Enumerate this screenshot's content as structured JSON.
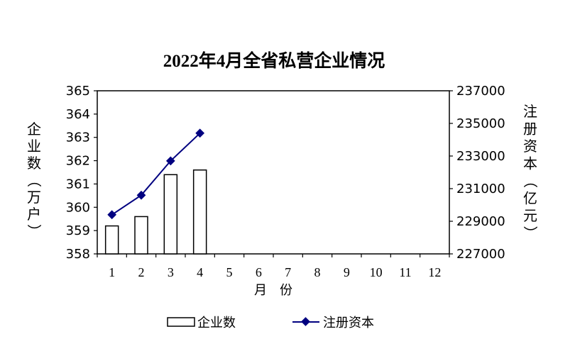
{
  "chart_data": {
    "type": "bar+line",
    "title": "2022年4月全省私营企业情况",
    "xlabel": "月　份",
    "ylabel_left": "企业数（万户）",
    "ylabel_right": "注册资本（亿元）",
    "categories": [
      "1",
      "2",
      "3",
      "4",
      "5",
      "6",
      "7",
      "8",
      "9",
      "10",
      "11",
      "12"
    ],
    "left_axis": {
      "ylim": [
        358,
        365
      ],
      "ticks": [
        "358",
        "359",
        "360",
        "361",
        "362",
        "363",
        "364",
        "365"
      ]
    },
    "right_axis": {
      "ylim": [
        227000,
        237000
      ],
      "ticks": [
        "227000",
        "229000",
        "231000",
        "233000",
        "235000",
        "237000"
      ]
    },
    "series": [
      {
        "name": "企业数",
        "type": "bar",
        "axis": "left",
        "values": [
          359.2,
          359.6,
          361.4,
          361.6,
          null,
          null,
          null,
          null,
          null,
          null,
          null,
          null
        ],
        "fill": "#ffffff",
        "stroke": "#000000"
      },
      {
        "name": "注册资本",
        "type": "line",
        "axis": "right",
        "values": [
          229400,
          230600,
          232700,
          234400,
          null,
          null,
          null,
          null,
          null,
          null,
          null,
          null
        ],
        "color": "#000080"
      }
    ],
    "grid": false,
    "legend_position": "bottom"
  }
}
